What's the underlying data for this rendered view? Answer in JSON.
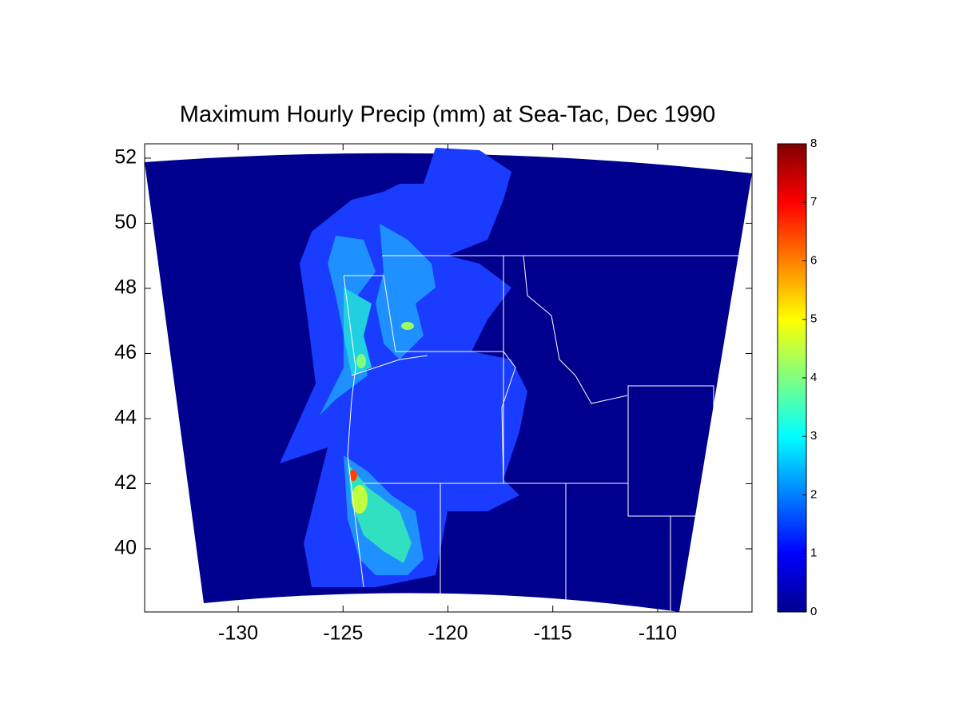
{
  "chart_data": {
    "type": "contour",
    "title": "Maximum Hourly Precip (mm) at Sea-Tac, Dec 1990",
    "xlim": [
      -134.46,
      -105.5
    ],
    "xticks": [
      -130,
      -125,
      -120,
      -115,
      -110
    ],
    "ylim": [
      38.06,
      52.44
    ],
    "yticks": [
      40,
      42,
      44,
      46,
      48,
      50,
      52
    ],
    "colormap": "jet",
    "colorbar": {
      "lim": [
        0,
        8
      ],
      "ticks": [
        0,
        1,
        2,
        3,
        4,
        5,
        6,
        7,
        8
      ]
    }
  }
}
